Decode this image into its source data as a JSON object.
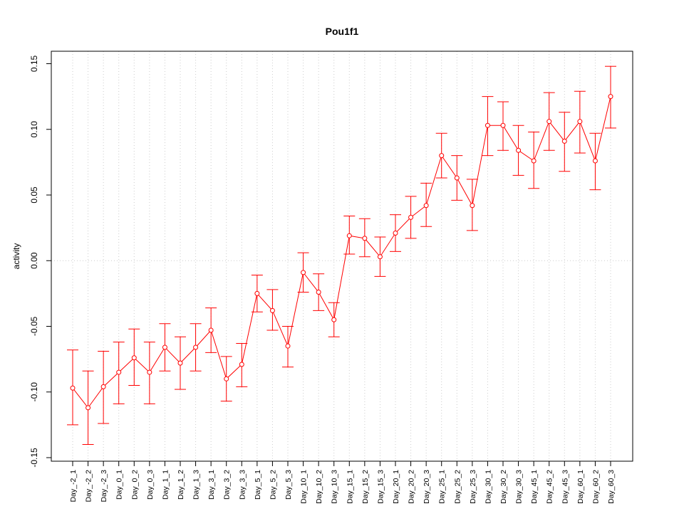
{
  "chart_data": {
    "type": "line",
    "title": "Pou1f1",
    "xlabel": "",
    "ylabel": "activity",
    "ylim": [
      -0.15,
      0.15
    ],
    "yticks": [
      "-0.15",
      "-0.10",
      "-0.05",
      "0.00",
      "0.05",
      "0.10",
      "0.15"
    ],
    "grid": true,
    "error_bars": true,
    "categories": [
      "Day_-2_1",
      "Day_-2_2",
      "Day_-2_3",
      "Day_0_1",
      "Day_0_2",
      "Day_0_3",
      "Day_1_1",
      "Day_1_2",
      "Day_1_3",
      "Day_3_1",
      "Day_3_2",
      "Day_3_3",
      "Day_5_1",
      "Day_5_2",
      "Day_5_3",
      "Day_10_1",
      "Day_10_2",
      "Day_10_3",
      "Day_15_1",
      "Day_15_2",
      "Day_15_3",
      "Day_20_1",
      "Day_20_2",
      "Day_20_3",
      "Day_25_1",
      "Day_25_2",
      "Day_25_3",
      "Day_30_1",
      "Day_30_2",
      "Day_30_3",
      "Day_45_1",
      "Day_45_2",
      "Day_45_3",
      "Day_60_1",
      "Day_60_2",
      "Day_60_3"
    ],
    "series": [
      {
        "color": "#ff0000",
        "values": [
          -0.097,
          -0.112,
          -0.096,
          -0.085,
          -0.074,
          -0.085,
          -0.066,
          -0.078,
          -0.066,
          -0.053,
          -0.09,
          -0.079,
          -0.025,
          -0.038,
          -0.065,
          -0.009,
          -0.024,
          -0.045,
          0.019,
          0.017,
          0.003,
          0.021,
          0.033,
          0.042,
          0.08,
          0.063,
          0.042,
          0.103,
          0.103,
          0.084,
          0.076,
          0.106,
          0.091,
          0.106,
          0.076,
          0.125
        ],
        "upper": [
          -0.068,
          -0.084,
          -0.069,
          -0.062,
          -0.052,
          -0.062,
          -0.048,
          -0.058,
          -0.048,
          -0.036,
          -0.073,
          -0.063,
          -0.011,
          -0.022,
          -0.05,
          0.006,
          -0.01,
          -0.032,
          0.034,
          0.032,
          0.018,
          0.035,
          0.049,
          0.059,
          0.097,
          0.08,
          0.062,
          0.125,
          0.121,
          0.103,
          0.098,
          0.128,
          0.113,
          0.129,
          0.097,
          0.148
        ],
        "lower": [
          -0.125,
          -0.14,
          -0.124,
          -0.109,
          -0.095,
          -0.109,
          -0.084,
          -0.098,
          -0.084,
          -0.07,
          -0.107,
          -0.096,
          -0.039,
          -0.053,
          -0.081,
          -0.024,
          -0.038,
          -0.058,
          0.005,
          0.003,
          -0.012,
          0.007,
          0.017,
          0.026,
          0.063,
          0.046,
          0.023,
          0.08,
          0.084,
          0.065,
          0.055,
          0.084,
          0.068,
          0.082,
          0.054,
          0.101
        ]
      }
    ]
  }
}
